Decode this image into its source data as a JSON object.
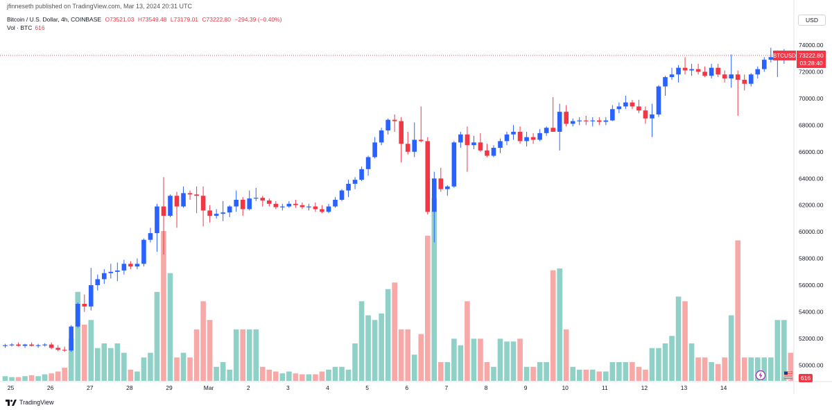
{
  "header": {
    "publisher": "jfinneseth published on TradingView.com, Mar 13, 2024 20:31 UTC",
    "symbol_desc": "Bitcoin / U.S. Dollar, 4h, COINBASE",
    "open": "O73521.03",
    "high": "H73549.48",
    "low": "L73179.01",
    "close": "C73222.80",
    "change": "−294.39 (−0.40%)",
    "vol_label": "Vol · BTC",
    "vol_value": "616"
  },
  "currency_button": "USD",
  "footer": {
    "brand": "TradingView"
  },
  "colors": {
    "up": "#2962ff",
    "down": "#f23645",
    "vol_up": "#8fd1c7",
    "vol_down": "#f7a9a7",
    "grid": "#f0f3fa"
  },
  "chart_data": {
    "type": "candlestick",
    "series_name": "BTCUSD",
    "last_price_label": "73222.80",
    "countdown_label": "03:28:40",
    "volume_last_label": "616",
    "ylim": [
      49000,
      74500
    ],
    "y_ticks": [
      "74000.00",
      "72000.00",
      "70000.00",
      "68000.00",
      "66000.00",
      "64000.00",
      "62000.00",
      "60000.00",
      "58000.00",
      "56000.00",
      "54000.00",
      "52000.00",
      "50000.00"
    ],
    "x_ticks": [
      {
        "label": "25",
        "index": 0
      },
      {
        "label": "26",
        "index": 6
      },
      {
        "label": "27",
        "index": 12
      },
      {
        "label": "28",
        "index": 18
      },
      {
        "label": "29",
        "index": 24
      },
      {
        "label": "Mar",
        "index": 30
      },
      {
        "label": "2",
        "index": 36
      },
      {
        "label": "3",
        "index": 42
      },
      {
        "label": "4",
        "index": 48
      },
      {
        "label": "5",
        "index": 54
      },
      {
        "label": "6",
        "index": 60
      },
      {
        "label": "7",
        "index": 66
      },
      {
        "label": "8",
        "index": 72
      },
      {
        "label": "9",
        "index": 78
      },
      {
        "label": "10",
        "index": 84
      },
      {
        "label": "11",
        "index": 90
      },
      {
        "label": "12",
        "index": 96
      },
      {
        "label": "13",
        "index": 102
      },
      {
        "label": "14",
        "index": 108
      }
    ],
    "candles": [
      [
        51450,
        51600,
        51300,
        51500,
        0.05
      ],
      [
        51500,
        51650,
        51400,
        51550,
        0.04
      ],
      [
        51550,
        51700,
        51400,
        51450,
        0.04
      ],
      [
        51450,
        51600,
        51300,
        51550,
        0.05
      ],
      [
        51550,
        51700,
        51400,
        51450,
        0.06
      ],
      [
        51450,
        51600,
        51300,
        51500,
        0.05
      ],
      [
        51500,
        51650,
        51400,
        51550,
        0.07
      ],
      [
        51550,
        51700,
        51200,
        51300,
        0.08
      ],
      [
        51300,
        51500,
        51050,
        51150,
        0.1
      ],
      [
        51150,
        51400,
        51000,
        51100,
        0.14
      ],
      [
        51100,
        53000,
        51000,
        52900,
        0.45
      ],
      [
        52900,
        54700,
        52800,
        54600,
        0.95
      ],
      [
        54600,
        55300,
        54000,
        54400,
        0.6
      ],
      [
        54400,
        57300,
        54100,
        56000,
        0.65
      ],
      [
        56000,
        56800,
        55600,
        56450,
        0.35
      ],
      [
        56450,
        57200,
        56100,
        56900,
        0.4
      ],
      [
        56900,
        57600,
        56500,
        57000,
        0.35
      ],
      [
        57000,
        57700,
        56300,
        57100,
        0.4
      ],
      [
        57100,
        57900,
        56800,
        57600,
        0.3
      ],
      [
        57600,
        57800,
        57200,
        57400,
        0.12
      ],
      [
        57400,
        58000,
        57200,
        57600,
        0.1
      ],
      [
        57600,
        59500,
        57400,
        59400,
        0.25
      ],
      [
        59400,
        60300,
        59200,
        59900,
        0.3
      ],
      [
        59900,
        62100,
        58500,
        61900,
        0.95
      ],
      [
        61900,
        64100,
        58300,
        61200,
        1.6
      ],
      [
        61200,
        62800,
        61100,
        62700,
        1.15
      ],
      [
        62700,
        63000,
        60300,
        61900,
        0.25
      ],
      [
        61900,
        63400,
        61800,
        62900,
        0.3
      ],
      [
        62900,
        63100,
        62400,
        62800,
        0.25
      ],
      [
        62800,
        63400,
        61400,
        62700,
        0.55
      ],
      [
        62700,
        63400,
        60400,
        61600,
        0.85
      ],
      [
        61600,
        62000,
        60700,
        61200,
        0.65
      ],
      [
        61200,
        61700,
        61000,
        61350,
        0.15
      ],
      [
        61350,
        62300,
        60800,
        61450,
        0.2
      ],
      [
        61450,
        62000,
        61100,
        61900,
        0.12
      ],
      [
        61900,
        63100,
        61500,
        62400,
        0.55
      ],
      [
        62400,
        62600,
        61200,
        61700,
        0.55
      ],
      [
        61700,
        63100,
        61600,
        62500,
        0.55
      ],
      [
        62500,
        63300,
        62300,
        62550,
        0.55
      ],
      [
        62550,
        62700,
        61900,
        62350,
        0.15
      ],
      [
        62350,
        62500,
        61900,
        62100,
        0.12
      ],
      [
        62100,
        62300,
        61700,
        61850,
        0.1
      ],
      [
        61850,
        62100,
        61600,
        61900,
        0.08
      ],
      [
        61900,
        62300,
        61800,
        62100,
        0.1
      ],
      [
        62100,
        62400,
        61800,
        62000,
        0.08
      ],
      [
        62000,
        62200,
        61700,
        61850,
        0.07
      ],
      [
        61850,
        62100,
        61600,
        61900,
        0.07
      ],
      [
        61900,
        62200,
        61500,
        61700,
        0.07
      ],
      [
        61700,
        62000,
        61400,
        61500,
        0.1
      ],
      [
        61500,
        62100,
        61400,
        61900,
        0.12
      ],
      [
        61900,
        62600,
        61800,
        62400,
        0.15
      ],
      [
        62400,
        63200,
        62300,
        63100,
        0.15
      ],
      [
        63100,
        63900,
        62600,
        63600,
        0.12
      ],
      [
        63600,
        64100,
        63200,
        63900,
        0.4
      ],
      [
        63900,
        64900,
        63800,
        64700,
        0.85
      ],
      [
        64700,
        65700,
        64200,
        65600,
        0.7
      ],
      [
        65600,
        67100,
        65500,
        66700,
        0.65
      ],
      [
        66700,
        67800,
        66500,
        67600,
        0.72
      ],
      [
        67600,
        68500,
        67300,
        68400,
        0.98
      ],
      [
        68400,
        68800,
        67500,
        68300,
        1.05
      ],
      [
        68300,
        68600,
        65200,
        66600,
        0.55
      ],
      [
        66600,
        67500,
        65800,
        66000,
        0.55
      ],
      [
        66000,
        68200,
        65600,
        66900,
        0.28
      ],
      [
        66900,
        69400,
        66700,
        66800,
        0.5
      ],
      [
        66800,
        67100,
        61300,
        61500,
        1.55
      ],
      [
        61500,
        64500,
        59200,
        64000,
        1.95
      ],
      [
        64000,
        64800,
        63000,
        63200,
        0.2
      ],
      [
        63200,
        63500,
        62700,
        63400,
        0.2
      ],
      [
        63400,
        66800,
        63300,
        66700,
        0.45
      ],
      [
        66700,
        67500,
        66300,
        67300,
        0.38
      ],
      [
        67300,
        67900,
        64500,
        66500,
        0.85
      ],
      [
        66500,
        67200,
        66200,
        66700,
        0.45
      ],
      [
        66700,
        67400,
        66000,
        66100,
        0.45
      ],
      [
        66100,
        66600,
        65600,
        65700,
        0.2
      ],
      [
        65700,
        66500,
        65600,
        66300,
        0.15
      ],
      [
        66300,
        67000,
        65900,
        66800,
        0.45
      ],
      [
        66800,
        67500,
        66500,
        67300,
        0.42
      ],
      [
        67300,
        68000,
        66900,
        67500,
        0.42
      ],
      [
        67500,
        67900,
        66600,
        66800,
        0.45
      ],
      [
        66800,
        67500,
        66400,
        67100,
        0.15
      ],
      [
        67100,
        67400,
        66600,
        66900,
        0.15
      ],
      [
        66900,
        67700,
        66800,
        67400,
        0.2
      ],
      [
        67400,
        67900,
        67200,
        67800,
        0.2
      ],
      [
        67800,
        70100,
        67600,
        67500,
        1.18
      ],
      [
        67500,
        69600,
        66100,
        69000,
        1.2
      ],
      [
        69000,
        69500,
        67900,
        68100,
        0.55
      ],
      [
        68100,
        68500,
        67900,
        68300,
        0.15
      ],
      [
        68300,
        68600,
        68000,
        68350,
        0.12
      ],
      [
        68350,
        68700,
        68000,
        68300,
        0.12
      ],
      [
        68300,
        68600,
        67900,
        68350,
        0.12
      ],
      [
        68350,
        68600,
        68000,
        68250,
        0.1
      ],
      [
        68250,
        68600,
        68000,
        68350,
        0.1
      ],
      [
        68350,
        69500,
        68300,
        69200,
        0.2
      ],
      [
        69200,
        69700,
        68900,
        69400,
        0.2
      ],
      [
        69400,
        70200,
        69200,
        69700,
        0.2
      ],
      [
        69700,
        69900,
        69200,
        69400,
        0.2
      ],
      [
        69400,
        69900,
        68900,
        69100,
        0.15
      ],
      [
        69100,
        69400,
        68100,
        68500,
        0.12
      ],
      [
        68500,
        69600,
        67100,
        68800,
        0.35
      ],
      [
        68800,
        71000,
        68600,
        70900,
        0.35
      ],
      [
        70900,
        71700,
        70200,
        71600,
        0.4
      ],
      [
        71600,
        72300,
        71400,
        71800,
        0.48
      ],
      [
        71800,
        72500,
        71200,
        72300,
        0.9
      ],
      [
        72300,
        73100,
        71800,
        72100,
        0.85
      ],
      [
        72100,
        72600,
        71700,
        72200,
        0.4
      ],
      [
        72200,
        72600,
        71800,
        72000,
        0.25
      ],
      [
        72000,
        72400,
        71600,
        71700,
        0.25
      ],
      [
        71700,
        72600,
        71500,
        72300,
        0.2
      ],
      [
        72300,
        72600,
        71600,
        71800,
        0.18
      ],
      [
        71800,
        72100,
        71200,
        71500,
        0.25
      ],
      [
        71500,
        73300,
        70800,
        71800,
        0.7
      ],
      [
        71800,
        72100,
        68700,
        71400,
        1.5
      ],
      [
        71400,
        71800,
        70600,
        71100,
        0.25
      ],
      [
        71100,
        71900,
        70900,
        71800,
        0.25
      ],
      [
        71800,
        72400,
        71500,
        72200,
        0.25
      ],
      [
        72200,
        73100,
        72000,
        72900,
        0.25
      ],
      [
        72900,
        73800,
        72700,
        73100,
        0.25
      ],
      [
        73100,
        73600,
        71600,
        73200,
        0.65
      ],
      [
        73200,
        73700,
        72600,
        73550,
        0.65
      ],
      [
        73521,
        73549,
        73179,
        73222,
        0.3
      ]
    ]
  }
}
